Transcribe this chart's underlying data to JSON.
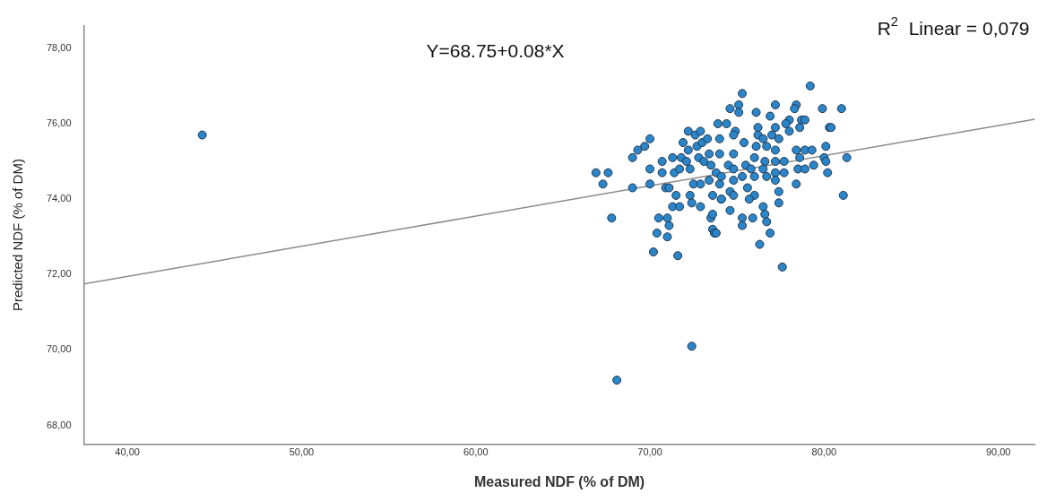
{
  "chart_data": {
    "type": "scatter",
    "xlabel": "Measured NDF (% of DM)",
    "ylabel": "Predicted NDF (% of DM)",
    "annotations": [
      "Y=68.75+0.08*X",
      "R$^{2}$  Linear = 0,079"
    ],
    "xlim": [
      37.5,
      92.1
    ],
    "ylim": [
      67.5,
      78.6
    ],
    "xticks": [
      {
        "value": 40,
        "label": "40,00"
      },
      {
        "value": 50,
        "label": "50,00"
      },
      {
        "value": 60,
        "label": "60,00"
      },
      {
        "value": 70,
        "label": "70,00"
      },
      {
        "value": 80,
        "label": "80,00"
      },
      {
        "value": 90,
        "label": "90,00"
      }
    ],
    "yticks": [
      {
        "value": 68,
        "label": "68,00"
      },
      {
        "value": 70,
        "label": "70,00"
      },
      {
        "value": 72,
        "label": "72,00"
      },
      {
        "value": 74,
        "label": "74,00"
      },
      {
        "value": 76,
        "label": "76,00"
      },
      {
        "value": 78,
        "label": "78,00"
      }
    ],
    "grid": false,
    "legend": false,
    "marker": "circle",
    "series": [
      {
        "color": "#2b86c9",
        "x": [
          44.3,
          68.1,
          72.4,
          66.9,
          67.6,
          67.3,
          67.8,
          69.0,
          69.3,
          69.7,
          70.0,
          70.0,
          69.0,
          70.0,
          70.2,
          70.4,
          70.5,
          71.0,
          71.1,
          71.0,
          70.7,
          70.7,
          70.9,
          71.1,
          71.3,
          71.4,
          71.5,
          71.7,
          71.6,
          71.3,
          71.7,
          71.9,
          71.8,
          72.1,
          72.2,
          72.2,
          72.3,
          72.5,
          72.3,
          72.4,
          72.6,
          72.7,
          72.8,
          72.9,
          73.0,
          72.9,
          72.9,
          73.1,
          73.3,
          73.4,
          73.4,
          73.5,
          73.6,
          73.5,
          73.6,
          73.7,
          73.6,
          73.8,
          73.9,
          74.0,
          74.0,
          74.1,
          74.0,
          75.3,
          79.2,
          74.6,
          75.1,
          75.1,
          76.1,
          77.2,
          78.4,
          78.3,
          79.9,
          81.0,
          76.9,
          78.0,
          78.7,
          78.9,
          80.3,
          80.4,
          74.4,
          74.9,
          76.2,
          77.2,
          77.8,
          78.6,
          74.8,
          75.4,
          76.2,
          76.5,
          77.0,
          77.4,
          78.0,
          76.1,
          76.7,
          77.2,
          78.4,
          78.9,
          79.3,
          80.1,
          81.3,
          74.8,
          75.5,
          76.0,
          76.6,
          77.2,
          77.7,
          78.6,
          80.0,
          80.1,
          78.5,
          78.9,
          79.4,
          74.5,
          74.8,
          75.8,
          76.5,
          77.2,
          77.7,
          80.2,
          74.1,
          74.8,
          75.3,
          76.0,
          76.7,
          77.2,
          78.4,
          81.1,
          74.6,
          75.6,
          76.0,
          77.4,
          77.4,
          74.1,
          74.8,
          75.7,
          76.5,
          74.6,
          75.3,
          75.9,
          76.6,
          76.7,
          75.3,
          73.8,
          76.9,
          76.3,
          77.6
        ],
        "values": [
          75.7,
          69.2,
          70.1,
          74.7,
          74.7,
          74.4,
          73.5,
          75.1,
          75.3,
          75.4,
          75.6,
          74.8,
          74.3,
          74.4,
          72.6,
          73.1,
          73.5,
          73.5,
          73.3,
          73.0,
          75.0,
          74.7,
          74.3,
          74.3,
          75.1,
          74.7,
          74.1,
          74.8,
          72.5,
          73.8,
          73.8,
          75.5,
          75.1,
          75.0,
          75.3,
          75.8,
          74.8,
          74.4,
          74.1,
          73.9,
          75.7,
          75.4,
          75.1,
          75.8,
          75.5,
          74.4,
          73.8,
          75.0,
          75.6,
          75.2,
          74.5,
          74.9,
          74.1,
          73.5,
          73.2,
          73.1,
          73.6,
          74.7,
          76.0,
          75.6,
          75.2,
          74.0,
          74.4,
          76.8,
          77.0,
          76.4,
          76.5,
          76.3,
          76.3,
          76.5,
          76.5,
          76.4,
          76.4,
          76.4,
          76.2,
          76.1,
          76.1,
          76.1,
          75.9,
          75.9,
          76.0,
          75.8,
          75.9,
          75.9,
          76.0,
          75.9,
          75.7,
          75.5,
          75.7,
          75.6,
          75.7,
          75.6,
          75.8,
          75.4,
          75.4,
          75.3,
          75.3,
          75.3,
          75.3,
          75.4,
          75.1,
          75.2,
          74.9,
          75.1,
          75.0,
          75.0,
          75.0,
          75.1,
          75.1,
          75.0,
          74.8,
          74.8,
          74.9,
          74.9,
          74.8,
          74.8,
          74.8,
          74.7,
          74.7,
          74.7,
          74.6,
          74.5,
          74.6,
          74.6,
          74.6,
          74.5,
          74.4,
          74.1,
          74.2,
          74.3,
          74.1,
          74.2,
          73.9,
          74.0,
          74.1,
          74.0,
          73.8,
          73.7,
          73.5,
          73.5,
          73.6,
          73.4,
          73.3,
          73.1,
          73.1,
          72.8,
          72.2
        ]
      },
      {
        "type": "line",
        "color": "#8c8c8c",
        "marker": "none",
        "line_style": "solid",
        "x": [
          37.5,
          92.1
        ],
        "values": [
          71.75,
          76.12
        ]
      }
    ]
  }
}
